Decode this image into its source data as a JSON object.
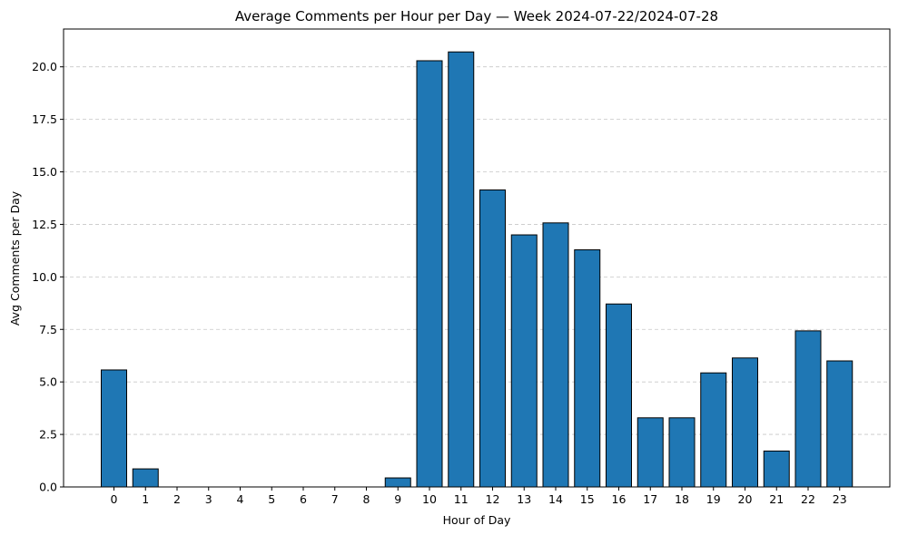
{
  "chart_data": {
    "type": "bar",
    "title": "Average Comments per Hour per Day — Week 2024-07-22/2024-07-28",
    "xlabel": "Hour of Day",
    "ylabel": "Avg Comments per Day",
    "categories": [
      "0",
      "1",
      "2",
      "3",
      "4",
      "5",
      "6",
      "7",
      "8",
      "9",
      "10",
      "11",
      "12",
      "13",
      "14",
      "15",
      "16",
      "17",
      "18",
      "19",
      "20",
      "21",
      "22",
      "23"
    ],
    "values": [
      5.57,
      0.86,
      0,
      0,
      0,
      0,
      0,
      0,
      0,
      0.43,
      20.29,
      20.71,
      14.14,
      12.0,
      12.57,
      11.29,
      8.71,
      3.29,
      3.29,
      5.43,
      6.14,
      1.71,
      7.43,
      6.0
    ],
    "ylim": [
      0,
      21.8
    ],
    "yticks": [
      "0.0",
      "2.5",
      "5.0",
      "7.5",
      "10.0",
      "12.5",
      "15.0",
      "17.5",
      "20.0"
    ],
    "grid": "y-dashed",
    "bar_color": "#1f77b4",
    "edge_color": "#000000"
  }
}
